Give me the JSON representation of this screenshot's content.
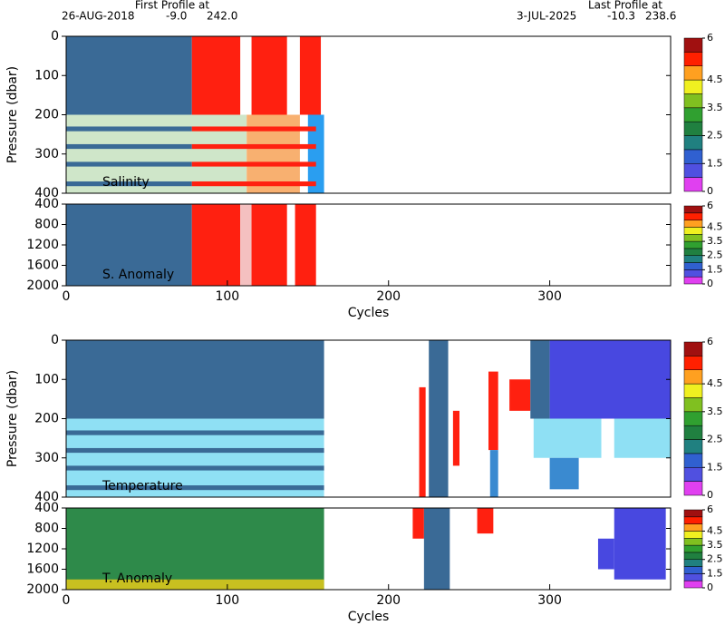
{
  "header": {
    "first_label": "First Profile at",
    "first_date": "26-AUG-2018",
    "first_lat": "-9.0",
    "first_lon": "242.0",
    "last_label": "Last Profile at",
    "last_date": "3-JUL-2025",
    "last_lat": "-10.3",
    "last_lon": "238.6"
  },
  "chart_data": [
    {
      "type": "heatmap",
      "label": "Salinity",
      "ylabel": "Pressure (dbar)",
      "xlim": [
        0,
        375
      ],
      "ylim": [
        0,
        400
      ],
      "yticks": [
        0,
        100,
        200,
        300,
        400
      ],
      "blocks": [
        {
          "x": [
            0,
            78
          ],
          "y": [
            0,
            200
          ],
          "color": "#3a6a96"
        },
        {
          "x": [
            78,
            108
          ],
          "y": [
            0,
            200
          ],
          "color": "#ff2010"
        },
        {
          "x": [
            115,
            137
          ],
          "y": [
            0,
            200
          ],
          "color": "#ff2010"
        },
        {
          "x": [
            145,
            158
          ],
          "y": [
            0,
            200
          ],
          "color": "#ff2010"
        },
        {
          "x": [
            0,
            112
          ],
          "y": [
            200,
            400
          ],
          "color": "#cfe6c9"
        },
        {
          "x": [
            112,
            145
          ],
          "y": [
            200,
            400
          ],
          "color": "#f8b070"
        },
        {
          "x": [
            150,
            160
          ],
          "y": [
            200,
            400
          ],
          "color": "#2a9ef0"
        },
        {
          "x": [
            0,
            78
          ],
          "y": [
            230,
            242
          ],
          "color": "#3a6a96"
        },
        {
          "x": [
            78,
            155
          ],
          "y": [
            230,
            242
          ],
          "color": "#ff2010"
        },
        {
          "x": [
            0,
            78
          ],
          "y": [
            275,
            287
          ],
          "color": "#3a6a96"
        },
        {
          "x": [
            78,
            155
          ],
          "y": [
            275,
            287
          ],
          "color": "#ff2010"
        },
        {
          "x": [
            0,
            78
          ],
          "y": [
            320,
            332
          ],
          "color": "#3a6a96"
        },
        {
          "x": [
            78,
            155
          ],
          "y": [
            320,
            332
          ],
          "color": "#ff2010"
        },
        {
          "x": [
            0,
            78
          ],
          "y": [
            370,
            382
          ],
          "color": "#3a6a96"
        },
        {
          "x": [
            78,
            155
          ],
          "y": [
            370,
            382
          ],
          "color": "#ff2010"
        }
      ],
      "colorbar": {
        "levels": [
          0,
          1,
          1.5,
          2,
          2.5,
          3,
          3.5,
          4,
          4.5,
          5,
          5.5,
          6
        ],
        "colors": [
          "#e040f0",
          "#5050e0",
          "#3060d0",
          "#208080",
          "#208040",
          "#30a030",
          "#80c020",
          "#f0f020",
          "#ffa020",
          "#ff2000",
          "#a01010"
        ],
        "ticks": [
          0,
          1.5,
          2.5,
          3.5,
          4.5,
          6
        ]
      }
    },
    {
      "type": "heatmap",
      "label": "S. Anomaly",
      "xlabel": "Cycles",
      "xlim": [
        0,
        375
      ],
      "ylim": [
        400,
        2000
      ],
      "yticks": [
        400,
        800,
        1200,
        1600,
        2000
      ],
      "xticks": [
        0,
        100,
        200,
        300
      ],
      "blocks": [
        {
          "x": [
            0,
            78
          ],
          "y": [
            400,
            2000
          ],
          "color": "#3a6a96"
        },
        {
          "x": [
            78,
            108
          ],
          "y": [
            400,
            2000
          ],
          "color": "#ff2010"
        },
        {
          "x": [
            108,
            115
          ],
          "y": [
            400,
            2000
          ],
          "color": "#f4c0c0"
        },
        {
          "x": [
            115,
            137
          ],
          "y": [
            400,
            2000
          ],
          "color": "#ff2010"
        },
        {
          "x": [
            142,
            155
          ],
          "y": [
            400,
            2000
          ],
          "color": "#ff2010"
        }
      ],
      "colorbar": {
        "levels": [
          0,
          1,
          1.5,
          2,
          2.5,
          3,
          3.5,
          4,
          4.5,
          5,
          5.5,
          6
        ],
        "colors": [
          "#e040f0",
          "#5050e0",
          "#3060d0",
          "#208080",
          "#208040",
          "#30a030",
          "#80c020",
          "#f0f020",
          "#ffa020",
          "#ff2000",
          "#a01010"
        ],
        "ticks": [
          0,
          1.5,
          2.5,
          3.5,
          4.5,
          6
        ]
      }
    },
    {
      "type": "heatmap",
      "label": "Temperature",
      "ylabel": "Pressure (dbar)",
      "xlim": [
        0,
        375
      ],
      "ylim": [
        0,
        400
      ],
      "yticks": [
        0,
        100,
        200,
        300,
        400
      ],
      "blocks": [
        {
          "x": [
            0,
            160
          ],
          "y": [
            0,
            200
          ],
          "color": "#3a6a96"
        },
        {
          "x": [
            0,
            160
          ],
          "y": [
            200,
            400
          ],
          "color": "#8fe0f4"
        },
        {
          "x": [
            0,
            160
          ],
          "y": [
            230,
            242
          ],
          "color": "#3a6a96"
        },
        {
          "x": [
            0,
            160
          ],
          "y": [
            275,
            287
          ],
          "color": "#3a6a96"
        },
        {
          "x": [
            0,
            160
          ],
          "y": [
            320,
            332
          ],
          "color": "#3a6a96"
        },
        {
          "x": [
            0,
            160
          ],
          "y": [
            370,
            382
          ],
          "color": "#3a6a96"
        },
        {
          "x": [
            219,
            223
          ],
          "y": [
            120,
            400
          ],
          "color": "#ff2010"
        },
        {
          "x": [
            225,
            237
          ],
          "y": [
            0,
            400
          ],
          "color": "#3a6a96"
        },
        {
          "x": [
            240,
            244
          ],
          "y": [
            180,
            320
          ],
          "color": "#ff2010"
        },
        {
          "x": [
            262,
            268
          ],
          "y": [
            80,
            280
          ],
          "color": "#ff2010"
        },
        {
          "x": [
            263,
            268
          ],
          "y": [
            280,
            400
          ],
          "color": "#3a8ad0"
        },
        {
          "x": [
            275,
            288
          ],
          "y": [
            100,
            180
          ],
          "color": "#ff2010"
        },
        {
          "x": [
            288,
            300
          ],
          "y": [
            0,
            200
          ],
          "color": "#3a6a96"
        },
        {
          "x": [
            300,
            375
          ],
          "y": [
            0,
            200
          ],
          "color": "#4848e0"
        },
        {
          "x": [
            290,
            332
          ],
          "y": [
            200,
            300
          ],
          "color": "#8fe0f4"
        },
        {
          "x": [
            300,
            318
          ],
          "y": [
            300,
            380
          ],
          "color": "#3a8ad0"
        },
        {
          "x": [
            340,
            375
          ],
          "y": [
            200,
            300
          ],
          "color": "#8fe0f4"
        }
      ],
      "colorbar": {
        "levels": [
          0,
          1,
          1.5,
          2,
          2.5,
          3,
          3.5,
          4,
          4.5,
          5,
          5.5,
          6
        ],
        "colors": [
          "#e040f0",
          "#5050e0",
          "#3060d0",
          "#208080",
          "#208040",
          "#30a030",
          "#80c020",
          "#f0f020",
          "#ffa020",
          "#ff2000",
          "#a01010"
        ],
        "ticks": [
          0,
          1.5,
          2.5,
          3.5,
          4.5,
          6
        ]
      }
    },
    {
      "type": "heatmap",
      "label": "T. Anomaly",
      "xlabel": "Cycles",
      "xlim": [
        0,
        375
      ],
      "ylim": [
        400,
        2000
      ],
      "yticks": [
        400,
        800,
        1200,
        1600,
        2000
      ],
      "xticks": [
        0,
        100,
        200,
        300
      ],
      "blocks": [
        {
          "x": [
            0,
            160
          ],
          "y": [
            400,
            2000
          ],
          "color": "#2e8a4a"
        },
        {
          "x": [
            0,
            160
          ],
          "y": [
            1800,
            2000
          ],
          "color": "#c8c020"
        },
        {
          "x": [
            215,
            222
          ],
          "y": [
            400,
            1000
          ],
          "color": "#ff2010"
        },
        {
          "x": [
            222,
            238
          ],
          "y": [
            400,
            2000
          ],
          "color": "#3a6a96"
        },
        {
          "x": [
            255,
            265
          ],
          "y": [
            400,
            900
          ],
          "color": "#ff2010"
        },
        {
          "x": [
            330,
            340
          ],
          "y": [
            1000,
            1600
          ],
          "color": "#4848e0"
        },
        {
          "x": [
            340,
            372
          ],
          "y": [
            400,
            1800
          ],
          "color": "#4848e0"
        }
      ],
      "colorbar": {
        "levels": [
          0,
          1,
          1.5,
          2,
          2.5,
          3,
          3.5,
          4,
          4.5,
          5,
          5.5,
          6
        ],
        "colors": [
          "#e040f0",
          "#5050e0",
          "#3060d0",
          "#208080",
          "#208040",
          "#30a030",
          "#80c020",
          "#f0f020",
          "#ffa020",
          "#ff2000",
          "#a01010"
        ],
        "ticks": [
          0,
          1.5,
          2.5,
          3.5,
          4.5,
          6
        ]
      }
    }
  ]
}
